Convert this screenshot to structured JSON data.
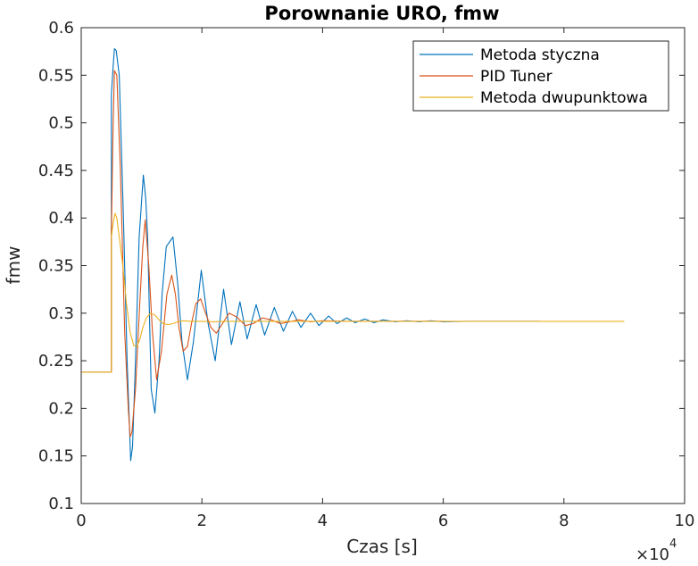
{
  "chart_data": {
    "type": "line",
    "title": "Porownanie URO, fmw",
    "xlabel": "Czas [s]",
    "ylabel": "fmw",
    "x_multiplier": "×10",
    "x_multiplier_exp": "4",
    "xlim": [
      0,
      100000
    ],
    "ylim": [
      0.1,
      0.6
    ],
    "xticks": [
      0,
      20000,
      40000,
      60000,
      80000,
      100000
    ],
    "xtick_labels": [
      "0",
      "2",
      "4",
      "6",
      "8",
      "10"
    ],
    "yticks": [
      0.1,
      0.15,
      0.2,
      0.25,
      0.3,
      0.35,
      0.4,
      0.45,
      0.5,
      0.55,
      0.6
    ],
    "ytick_labels": [
      "0.1",
      "0.15",
      "0.2",
      "0.25",
      "0.3",
      "0.35",
      "0.4",
      "0.45",
      "0.5",
      "0.55",
      "0.6"
    ],
    "grid": false,
    "legend_position": "top-right",
    "series": [
      {
        "name": "Metoda styczna",
        "color": "#0072BD",
        "x": [
          0,
          5000,
          5000,
          5300,
          5500,
          5800,
          6300,
          7000,
          7600,
          8000,
          8200,
          8500,
          9000,
          9600,
          10300,
          10700,
          11000,
          11300,
          11600,
          12200,
          12900,
          13400,
          14100,
          15200,
          16000,
          16700,
          17600,
          18600,
          19900,
          21000,
          22200,
          23600,
          24900,
          26300,
          27500,
          29000,
          30400,
          32000,
          33500,
          35000,
          36400,
          38000,
          39400,
          41000,
          42400,
          44000,
          45400,
          47000,
          48500,
          50000,
          52000,
          54000,
          56000,
          58000,
          60000,
          64000,
          68000,
          72000,
          76000
        ],
        "y": [
          0.238,
          0.238,
          0.53,
          0.56,
          0.578,
          0.576,
          0.55,
          0.4,
          0.25,
          0.18,
          0.145,
          0.16,
          0.25,
          0.38,
          0.445,
          0.42,
          0.38,
          0.3,
          0.22,
          0.195,
          0.25,
          0.32,
          0.37,
          0.38,
          0.33,
          0.27,
          0.23,
          0.27,
          0.345,
          0.29,
          0.25,
          0.325,
          0.267,
          0.312,
          0.273,
          0.309,
          0.277,
          0.306,
          0.281,
          0.302,
          0.285,
          0.3,
          0.287,
          0.297,
          0.289,
          0.295,
          0.29,
          0.294,
          0.29,
          0.293,
          0.291,
          0.292,
          0.291,
          0.292,
          0.291,
          0.2915,
          0.2915,
          0.2915,
          0.2915
        ]
      },
      {
        "name": "PID Tuner",
        "color": "#D95319",
        "x": [
          0,
          5000,
          5000,
          5300,
          5500,
          5900,
          6500,
          7200,
          7800,
          8100,
          8400,
          9000,
          9700,
          10200,
          10600,
          11200,
          11800,
          12500,
          13300,
          14200,
          15000,
          15600,
          16200,
          16900,
          17600,
          18300,
          19000,
          19800,
          20600,
          21500,
          22400,
          23500,
          24500,
          25800,
          27200,
          28500,
          30000,
          31500,
          33000,
          34500,
          36000,
          38000,
          40000,
          44000,
          48000,
          52000,
          56000,
          60000
        ],
        "y": [
          0.238,
          0.238,
          0.385,
          0.5,
          0.555,
          0.55,
          0.45,
          0.28,
          0.2,
          0.17,
          0.175,
          0.22,
          0.31,
          0.37,
          0.398,
          0.35,
          0.28,
          0.23,
          0.26,
          0.32,
          0.34,
          0.32,
          0.285,
          0.26,
          0.265,
          0.29,
          0.31,
          0.315,
          0.3,
          0.285,
          0.279,
          0.29,
          0.3,
          0.296,
          0.287,
          0.289,
          0.295,
          0.293,
          0.289,
          0.291,
          0.293,
          0.291,
          0.292,
          0.2915,
          0.2915,
          0.2915,
          0.2915,
          0.2915
        ]
      },
      {
        "name": "Metoda dwupunktowa",
        "color": "#EDB120",
        "x": [
          0,
          5000,
          5000,
          5300,
          5600,
          5900,
          6300,
          6900,
          7500,
          8100,
          8700,
          9200,
          9700,
          10200,
          10800,
          11500,
          12200,
          12900,
          13600,
          14400,
          15200,
          16000,
          17000,
          18000,
          20000,
          22000,
          24000,
          27000,
          30000,
          35000,
          40000,
          50000,
          60000,
          70000,
          80000,
          90000
        ],
        "y": [
          0.238,
          0.238,
          0.38,
          0.395,
          0.405,
          0.4,
          0.38,
          0.35,
          0.31,
          0.28,
          0.266,
          0.265,
          0.272,
          0.285,
          0.295,
          0.3,
          0.298,
          0.293,
          0.289,
          0.288,
          0.289,
          0.291,
          0.292,
          0.2915,
          0.2915,
          0.291,
          0.2915,
          0.2915,
          0.2915,
          0.2915,
          0.2915,
          0.2915,
          0.2915,
          0.2915,
          0.2915,
          0.2915
        ]
      }
    ]
  }
}
